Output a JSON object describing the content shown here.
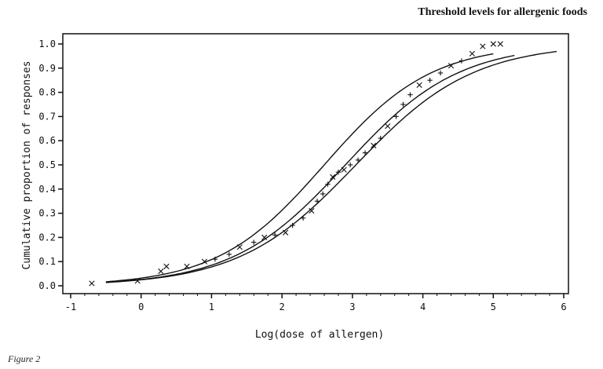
{
  "header": {
    "running_title": "Threshold levels for allergenic foods"
  },
  "caption": {
    "figure_label": "Figure 2"
  },
  "chart_data": {
    "type": "scatter",
    "title": "",
    "xlabel": "Log(dose of allergen)",
    "ylabel": "Cumulative proportion of responses",
    "xlim": [
      -1,
      6
    ],
    "ylim": [
      0,
      1.0
    ],
    "x_ticks": [
      "-1",
      "0",
      "1",
      "2",
      "3",
      "4",
      "5",
      "6"
    ],
    "y_ticks": [
      "0.0",
      "0.1",
      "0.2",
      "0.3",
      "0.4",
      "0.5",
      "0.6",
      "0.7",
      "0.8",
      "0.9",
      "1.0"
    ],
    "grid": false,
    "legend": "none",
    "curves": {
      "fitted": {
        "x_range": [
          -0.5,
          5.3
        ],
        "location": 2.9,
        "scale": 0.8
      },
      "lower_bound": {
        "x_range": [
          -0.5,
          5.9
        ],
        "location": 3.05,
        "scale": 0.83
      },
      "upper_bound": {
        "x_range": [
          -0.5,
          5.0
        ],
        "location": 2.6,
        "scale": 0.76
      }
    },
    "points": [
      {
        "x": -0.7,
        "y": 0.01,
        "marker": "x"
      },
      {
        "x": -0.05,
        "y": 0.02,
        "marker": "x"
      },
      {
        "x": 0.28,
        "y": 0.06,
        "marker": "x"
      },
      {
        "x": 0.36,
        "y": 0.08,
        "marker": "x"
      },
      {
        "x": 0.65,
        "y": 0.08,
        "marker": "x"
      },
      {
        "x": 0.9,
        "y": 0.1,
        "marker": "x"
      },
      {
        "x": 1.05,
        "y": 0.11,
        "marker": "+"
      },
      {
        "x": 1.25,
        "y": 0.13,
        "marker": "+"
      },
      {
        "x": 1.4,
        "y": 0.16,
        "marker": "x"
      },
      {
        "x": 1.6,
        "y": 0.18,
        "marker": "+"
      },
      {
        "x": 1.75,
        "y": 0.2,
        "marker": "x"
      },
      {
        "x": 1.9,
        "y": 0.21,
        "marker": "+"
      },
      {
        "x": 2.05,
        "y": 0.22,
        "marker": "x"
      },
      {
        "x": 2.15,
        "y": 0.25,
        "marker": "+"
      },
      {
        "x": 2.3,
        "y": 0.28,
        "marker": "+"
      },
      {
        "x": 2.42,
        "y": 0.31,
        "marker": "x"
      },
      {
        "x": 2.5,
        "y": 0.35,
        "marker": "+"
      },
      {
        "x": 2.58,
        "y": 0.38,
        "marker": "+"
      },
      {
        "x": 2.65,
        "y": 0.42,
        "marker": "+"
      },
      {
        "x": 2.72,
        "y": 0.45,
        "marker": "x"
      },
      {
        "x": 2.8,
        "y": 0.47,
        "marker": "+"
      },
      {
        "x": 2.88,
        "y": 0.48,
        "marker": "x"
      },
      {
        "x": 2.97,
        "y": 0.5,
        "marker": "+"
      },
      {
        "x": 3.08,
        "y": 0.52,
        "marker": "+"
      },
      {
        "x": 3.18,
        "y": 0.55,
        "marker": "+"
      },
      {
        "x": 3.3,
        "y": 0.58,
        "marker": "x"
      },
      {
        "x": 3.4,
        "y": 0.61,
        "marker": "+"
      },
      {
        "x": 3.5,
        "y": 0.66,
        "marker": "x"
      },
      {
        "x": 3.62,
        "y": 0.7,
        "marker": "+"
      },
      {
        "x": 3.72,
        "y": 0.75,
        "marker": "+"
      },
      {
        "x": 3.82,
        "y": 0.79,
        "marker": "+"
      },
      {
        "x": 3.95,
        "y": 0.83,
        "marker": "x"
      },
      {
        "x": 4.1,
        "y": 0.85,
        "marker": "+"
      },
      {
        "x": 4.25,
        "y": 0.88,
        "marker": "+"
      },
      {
        "x": 4.4,
        "y": 0.91,
        "marker": "x"
      },
      {
        "x": 4.55,
        "y": 0.93,
        "marker": "+"
      },
      {
        "x": 4.7,
        "y": 0.96,
        "marker": "x"
      },
      {
        "x": 4.85,
        "y": 0.99,
        "marker": "x"
      },
      {
        "x": 5.0,
        "y": 1.0,
        "marker": "x"
      },
      {
        "x": 5.1,
        "y": 1.0,
        "marker": "x"
      }
    ]
  }
}
